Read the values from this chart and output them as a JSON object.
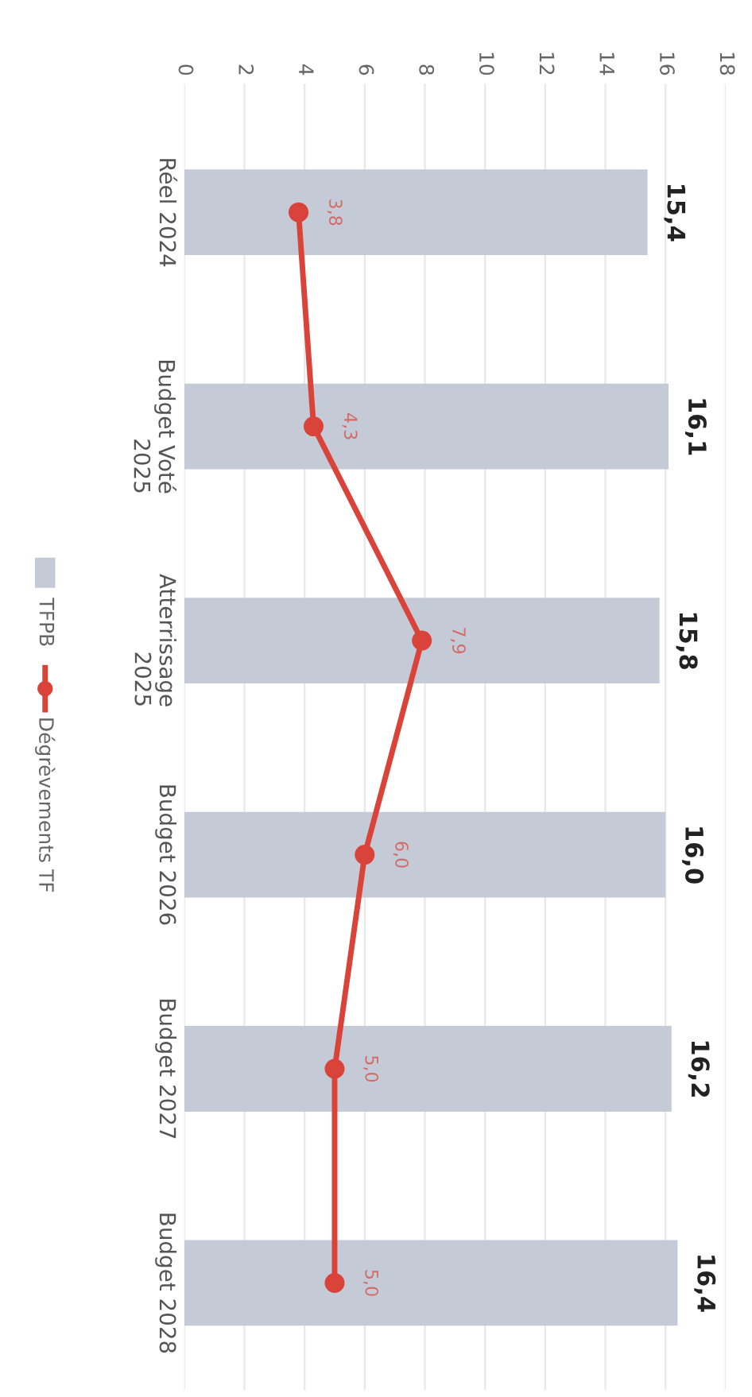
{
  "chart_data": {
    "type": "bar",
    "orientation": "horizontal",
    "categories": [
      "Réel 2024",
      "Budget Voté\n2025",
      "Atterrissage\n2025",
      "Budget 2026",
      "Budget 2027",
      "Budget 2028"
    ],
    "series": [
      {
        "name": "TFPB",
        "color": "#c5cbd6",
        "values": [
          15.4,
          16.1,
          15.8,
          16.0,
          16.2,
          16.4
        ],
        "value_labels": [
          "15,4",
          "16,1",
          "15,8",
          "16,0",
          "16,2",
          "16,4"
        ]
      },
      {
        "name": "Dégrèvements TF",
        "type": "line",
        "color": "#d9433a",
        "marker": "circle",
        "values": [
          3.8,
          4.3,
          7.9,
          6.0,
          5.0,
          5.0
        ],
        "value_labels": [
          "3,8",
          "4,3",
          "7,9",
          "6,0",
          "5,0",
          "5,0"
        ]
      }
    ],
    "xlim": [
      0,
      18
    ],
    "xticks": [
      0,
      2,
      4,
      6,
      8,
      10,
      12,
      14,
      16,
      18
    ],
    "grid": "x",
    "legend": "left"
  }
}
